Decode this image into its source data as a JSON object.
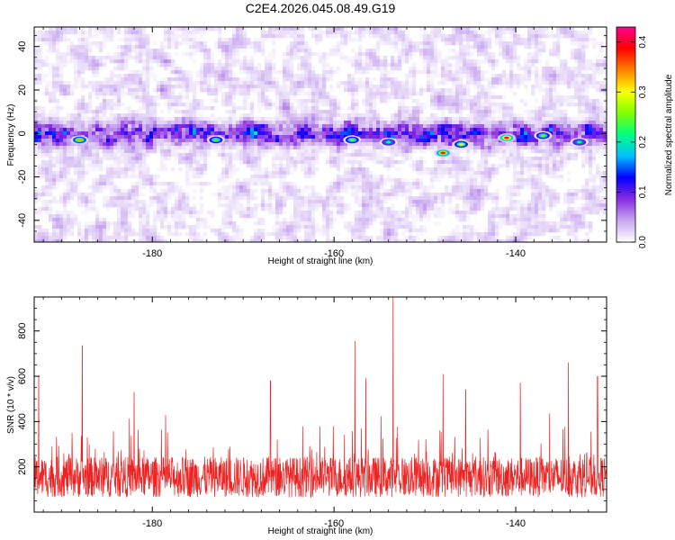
{
  "page_title": "C2E4.2026.045.08.49.G19",
  "chart_data": [
    {
      "type": "heatmap",
      "title": "C2E4.2026.045.08.49.G19",
      "xlabel": "Height of straight line (km)",
      "ylabel": "Frequency (Hz)",
      "xlim": [
        -193,
        -130
      ],
      "ylim": [
        -50,
        49
      ],
      "x_ticks": [
        -180,
        -160,
        -140
      ],
      "y_ticks": [
        -40,
        -20,
        0,
        20,
        40
      ],
      "x_tick_labels": [
        "-180",
        "-160",
        "-140"
      ],
      "y_tick_labels": [
        "-40",
        "-20",
        "0",
        "20",
        "40"
      ],
      "signal_band_center_hz": 0,
      "signal_band_halfwidth_hz": 5,
      "hotspots": [
        {
          "x": -188,
          "y": -3,
          "value": 0.33
        },
        {
          "x": -173,
          "y": -3,
          "value": 0.25
        },
        {
          "x": -158,
          "y": -3,
          "value": 0.25
        },
        {
          "x": -154,
          "y": -4,
          "value": 0.22
        },
        {
          "x": -148,
          "y": -9,
          "value": 0.38
        },
        {
          "x": -146,
          "y": -5,
          "value": 0.3
        },
        {
          "x": -141,
          "y": -2,
          "value": 0.42
        },
        {
          "x": -137,
          "y": -1,
          "value": 0.25
        },
        {
          "x": -133,
          "y": -4,
          "value": 0.22
        }
      ],
      "colorbar": {
        "label": "Normalized spectral amplitude",
        "range": [
          0,
          0.43
        ],
        "ticks": [
          0.0,
          0.1,
          0.2,
          0.3,
          0.4
        ],
        "tick_labels": [
          "0.0",
          "0.1",
          "0.2",
          "0.3",
          "0.4"
        ],
        "colors": [
          "#ffffff",
          "#c8a8f0",
          "#8a2be2",
          "#0000ff",
          "#00c0ff",
          "#00ff80",
          "#80ff00",
          "#ffff00",
          "#ff8000",
          "#ff0000",
          "#ff0090"
        ]
      }
    },
    {
      "type": "line",
      "xlabel": "Height of straight line (km)",
      "ylabel": "SNR (10 * v/v)",
      "xlim": [
        -193,
        -130
      ],
      "ylim": [
        0,
        950
      ],
      "x_ticks": [
        -180,
        -160,
        -140
      ],
      "y_ticks": [
        200,
        400,
        600,
        800
      ],
      "x_tick_labels": [
        "-180",
        "-160",
        "-140"
      ],
      "y_tick_labels": [
        "200",
        "400",
        "600",
        "800"
      ],
      "series": [
        {
          "name": "SNR",
          "color": "#ee2222",
          "baseline": 155,
          "noise_amplitude": 90
        }
      ],
      "peaks": [
        {
          "x": -192.5,
          "y": 600
        },
        {
          "x": -187.7,
          "y": 735
        },
        {
          "x": -182.0,
          "y": 530
        },
        {
          "x": -167.0,
          "y": 580
        },
        {
          "x": -157.7,
          "y": 755
        },
        {
          "x": -156.5,
          "y": 590
        },
        {
          "x": -153.5,
          "y": 950
        },
        {
          "x": -148.0,
          "y": 610
        },
        {
          "x": -145.5,
          "y": 540
        },
        {
          "x": -139.5,
          "y": 570
        },
        {
          "x": -134.2,
          "y": 660
        },
        {
          "x": -131.0,
          "y": 600
        }
      ]
    }
  ]
}
